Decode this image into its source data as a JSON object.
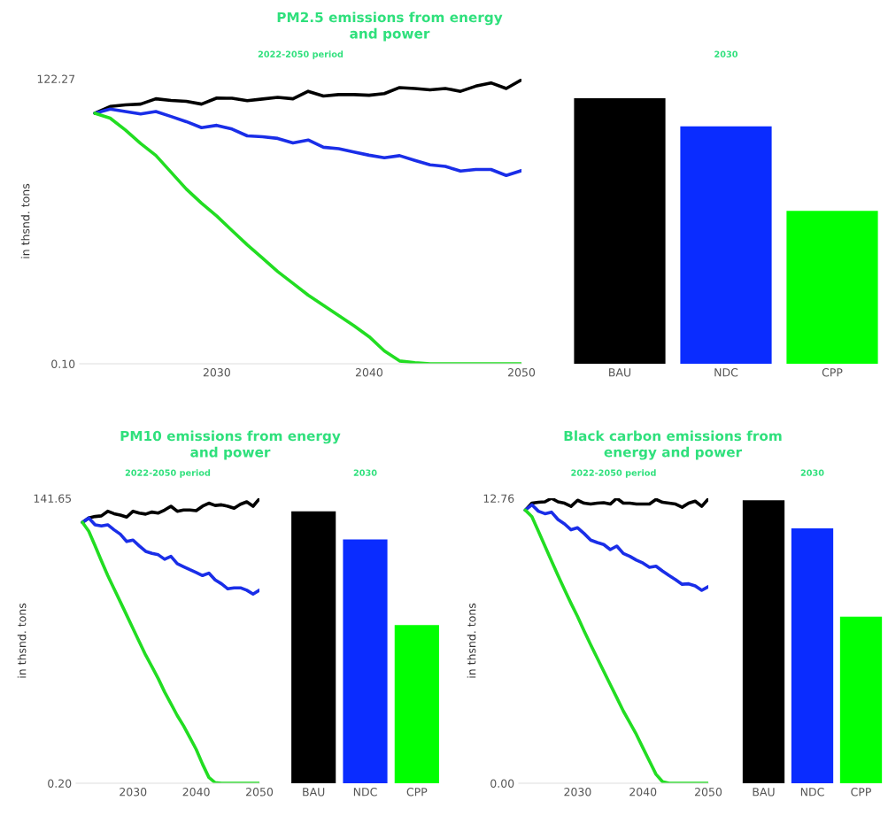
{
  "chart_data": [
    {
      "type": "line",
      "title": "PM2.5 emissions from energy\nand power",
      "subtitle": "2022-2050 period",
      "ylabel": "in thsnd. tons",
      "xlim": [
        2021,
        2050
      ],
      "xticks": [
        2030,
        2040,
        2050
      ],
      "ylim": [
        0.1,
        122.27
      ],
      "yticks": [
        {
          "value": 0.1,
          "label": "0.10"
        },
        {
          "value": 122.27,
          "label": "122.27"
        }
      ],
      "x": [
        2022,
        2023,
        2024,
        2025,
        2026,
        2027,
        2028,
        2029,
        2030,
        2031,
        2032,
        2033,
        2034,
        2035,
        2036,
        2037,
        2038,
        2039,
        2040,
        2041,
        2042,
        2043,
        2044,
        2045,
        2046,
        2047,
        2048,
        2049,
        2050
      ],
      "series": [
        {
          "color": "#000000",
          "values": [
            107.5,
            110.4,
            111.1,
            111.4,
            113.7,
            113.0,
            112.6,
            111.4,
            114.0,
            113.9,
            112.9,
            113.6,
            114.3,
            113.7,
            116.9,
            114.9,
            115.5,
            115.5,
            115.2,
            115.9,
            118.5,
            118.1,
            117.5,
            118.1,
            116.9,
            119.1,
            120.5,
            118.1,
            121.8
          ]
        },
        {
          "color": "#1a2ee8",
          "values": [
            107.5,
            109.3,
            108.2,
            107.2,
            108.2,
            106.1,
            103.9,
            101.3,
            102.3,
            100.7,
            97.8,
            97.4,
            96.7,
            94.8,
            96.0,
            92.9,
            92.3,
            90.9,
            89.5,
            88.4,
            89.3,
            87.3,
            85.4,
            84.7,
            82.7,
            83.4,
            83.4,
            80.8,
            82.9
          ]
        },
        {
          "color": "#22dd22",
          "values": [
            107.5,
            105.4,
            100.3,
            94.5,
            89.4,
            82.2,
            75.0,
            68.9,
            63.4,
            57.2,
            51.1,
            45.4,
            39.6,
            34.6,
            29.5,
            25.1,
            20.8,
            16.4,
            11.7,
            5.6,
            1.3,
            0.6,
            0.1,
            0.1,
            0.1,
            0.1,
            0.1,
            0.1,
            0.1
          ]
        }
      ]
    },
    {
      "type": "bar",
      "subtitle": "2030",
      "categories": [
        "BAU",
        "NDC",
        "CPP"
      ],
      "colors": [
        "#000000",
        "#0a2cff",
        "#00ff00"
      ],
      "values": [
        113.9,
        101.9,
        65.6
      ],
      "ylim": [
        0.1,
        122.27
      ],
      "tick_labels": "x"
    },
    {
      "type": "line",
      "title": "PM10 emissions from energy\nand power",
      "subtitle": "2022-2050 period",
      "ylabel": "in thsnd. tons",
      "xlim": [
        2021,
        2050
      ],
      "xticks": [
        2030,
        2040,
        2050
      ],
      "ylim": [
        0.2,
        141.65
      ],
      "yticks": [
        {
          "value": 0.2,
          "label": "0.20"
        },
        {
          "value": 141.65,
          "label": "141.65"
        }
      ],
      "x": [
        2022,
        2023,
        2024,
        2025,
        2026,
        2027,
        2028,
        2029,
        2030,
        2031,
        2032,
        2033,
        2034,
        2035,
        2036,
        2037,
        2038,
        2039,
        2040,
        2041,
        2042,
        2043,
        2044,
        2045,
        2046,
        2047,
        2048,
        2049,
        2050
      ],
      "series": [
        {
          "color": "#000000",
          "values": [
            129.7,
            131.9,
            132.6,
            132.9,
            135.2,
            134.0,
            133.3,
            132.3,
            135.2,
            134.3,
            133.8,
            134.8,
            134.3,
            135.8,
            137.7,
            135.2,
            135.8,
            135.8,
            135.5,
            137.7,
            139.2,
            138.1,
            138.4,
            137.7,
            136.7,
            138.7,
            139.9,
            137.7,
            141.4
          ]
        },
        {
          "color": "#1a2ee8",
          "values": [
            129.7,
            131.9,
            128.5,
            127.9,
            128.5,
            126.0,
            123.8,
            120.2,
            120.9,
            118.0,
            115.3,
            114.3,
            113.6,
            111.4,
            112.8,
            109.2,
            107.7,
            106.2,
            104.8,
            103.3,
            104.5,
            101.1,
            99.2,
            96.7,
            97.2,
            97.2,
            96.0,
            94.1,
            96.0
          ]
        },
        {
          "color": "#22dd22",
          "values": [
            129.7,
            125.3,
            118.0,
            110.6,
            103.3,
            96.7,
            90.2,
            83.6,
            77.0,
            70.4,
            63.8,
            58.0,
            52.1,
            45.5,
            39.7,
            33.8,
            28.7,
            22.9,
            17.0,
            9.7,
            3.1,
            0.5,
            0.2,
            0.2,
            0.2,
            0.2,
            0.2,
            0.2,
            0.2
          ]
        }
      ]
    },
    {
      "type": "bar",
      "subtitle": "2030",
      "categories": [
        "BAU",
        "NDC",
        "CPP"
      ],
      "colors": [
        "#000000",
        "#0a2cff",
        "#00ff00"
      ],
      "values": [
        135.2,
        121.2,
        78.7
      ],
      "ylim": [
        0.2,
        141.65
      ],
      "tick_labels": "x"
    },
    {
      "type": "line",
      "title": "Black carbon emissions from\nenergy and power",
      "subtitle": "2022-2050 period",
      "ylabel": "in thsnd. tons",
      "xlim": [
        2021,
        2050
      ],
      "xticks": [
        2030,
        2040,
        2050
      ],
      "ylim": [
        0.0,
        12.76
      ],
      "yticks": [
        {
          "value": 0.0,
          "label": "0.00"
        },
        {
          "value": 12.76,
          "label": "12.76"
        }
      ],
      "x": [
        2022,
        2023,
        2024,
        2025,
        2026,
        2027,
        2028,
        2029,
        2030,
        2031,
        2032,
        2033,
        2034,
        2035,
        2036,
        2037,
        2038,
        2039,
        2040,
        2041,
        2042,
        2043,
        2044,
        2045,
        2046,
        2047,
        2048,
        2049,
        2050
      ],
      "series": [
        {
          "color": "#000000",
          "values": [
            12.23,
            12.54,
            12.58,
            12.6,
            12.76,
            12.6,
            12.54,
            12.4,
            12.67,
            12.54,
            12.5,
            12.54,
            12.56,
            12.5,
            12.76,
            12.54,
            12.54,
            12.5,
            12.5,
            12.5,
            12.71,
            12.58,
            12.54,
            12.5,
            12.36,
            12.54,
            12.63,
            12.4,
            12.73
          ]
        },
        {
          "color": "#1a2ee8",
          "values": [
            12.23,
            12.47,
            12.18,
            12.07,
            12.14,
            11.81,
            11.61,
            11.35,
            11.44,
            11.18,
            10.89,
            10.78,
            10.69,
            10.46,
            10.62,
            10.29,
            10.16,
            9.99,
            9.86,
            9.67,
            9.72,
            9.5,
            9.3,
            9.11,
            8.91,
            8.93,
            8.84,
            8.64,
            8.8
          ]
        },
        {
          "color": "#22dd22",
          "values": [
            12.23,
            11.94,
            11.28,
            10.62,
            9.96,
            9.3,
            8.67,
            8.05,
            7.46,
            6.82,
            6.2,
            5.61,
            5.01,
            4.42,
            3.83,
            3.23,
            2.71,
            2.18,
            1.58,
            0.99,
            0.4,
            0.07,
            0.0,
            0.0,
            0.0,
            0.0,
            0.0,
            0.0,
            0.0
          ]
        }
      ]
    },
    {
      "type": "bar",
      "subtitle": "2030",
      "categories": [
        "BAU",
        "NDC",
        "CPP"
      ],
      "colors": [
        "#000000",
        "#0a2cff",
        "#00ff00"
      ],
      "values": [
        12.67,
        11.41,
        7.46
      ],
      "ylim": [
        0.0,
        12.76
      ],
      "tick_labels": "x"
    }
  ]
}
